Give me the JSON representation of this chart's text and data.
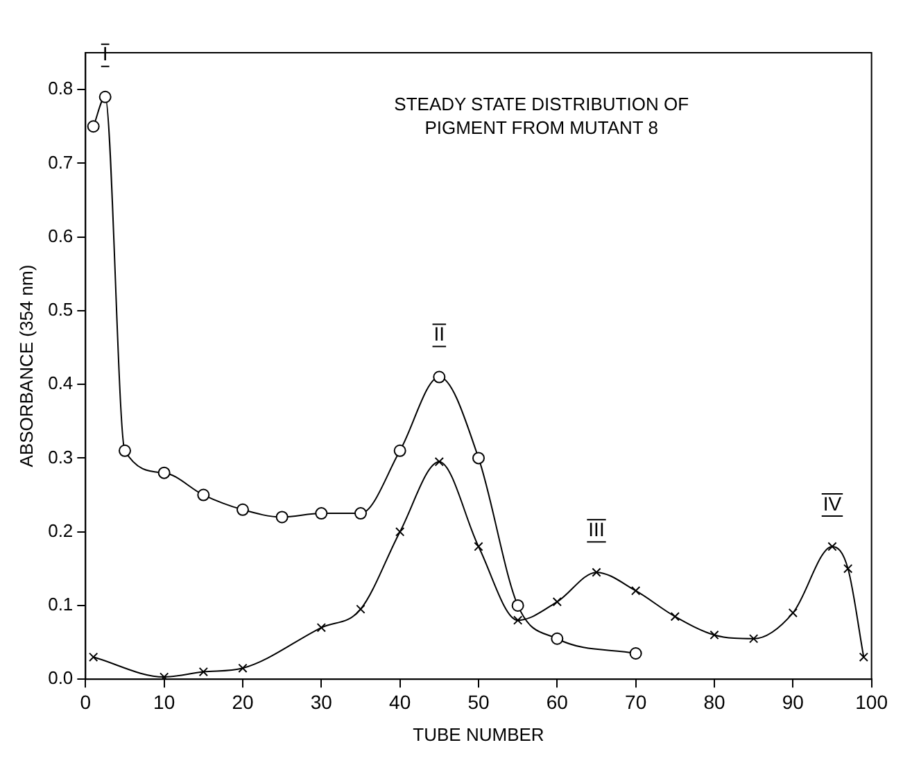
{
  "chart_data": {
    "type": "line",
    "title": "STEADY STATE DISTRIBUTION OF\nPIGMENT FROM MUTANT 8",
    "xlabel": "TUBE NUMBER",
    "ylabel": "ABSORBANCE (354 nm)",
    "xlim": [
      0,
      100
    ],
    "xticks": [
      0,
      10,
      20,
      30,
      40,
      50,
      60,
      70,
      80,
      90,
      100
    ],
    "ylim": [
      0,
      0.85
    ],
    "yticks": [
      {
        "value": 0,
        "label": "0.0"
      },
      0.1,
      0.2,
      0.3,
      0.4,
      0.5,
      0.6,
      0.7,
      0.8
    ],
    "grid": false,
    "legend": false,
    "line_style": "solid",
    "series": [
      {
        "color": "#000000",
        "marker": "circle",
        "x": [
          1,
          2.5,
          5,
          10,
          15,
          20,
          25,
          30,
          35,
          40,
          45,
          50,
          55,
          60,
          70
        ],
        "values": [
          0.75,
          0.79,
          0.31,
          0.28,
          0.25,
          0.23,
          0.22,
          0.225,
          0.225,
          0.31,
          0.41,
          0.3,
          0.1,
          0.055,
          0.035
        ]
      },
      {
        "color": "#000000",
        "marker": "cross",
        "x": [
          1,
          10,
          15,
          20,
          30,
          35,
          40,
          45,
          50,
          55,
          60,
          65,
          70,
          75,
          80,
          85,
          90,
          95,
          97,
          99
        ],
        "values": [
          0.03,
          0.003,
          0.01,
          0.015,
          0.07,
          0.095,
          0.2,
          0.295,
          0.18,
          0.08,
          0.105,
          0.145,
          0.12,
          0.085,
          0.06,
          0.055,
          0.09,
          0.18,
          0.15,
          0.03
        ]
      }
    ],
    "annotations": [
      {
        "text": "I",
        "x": 2.5,
        "y": 0.79
      },
      {
        "text": "II",
        "x": 45,
        "y": 0.41
      },
      {
        "text": "III",
        "x": 65,
        "y": 0.145
      },
      {
        "text": "IV",
        "x": 95,
        "y": 0.18
      }
    ]
  }
}
